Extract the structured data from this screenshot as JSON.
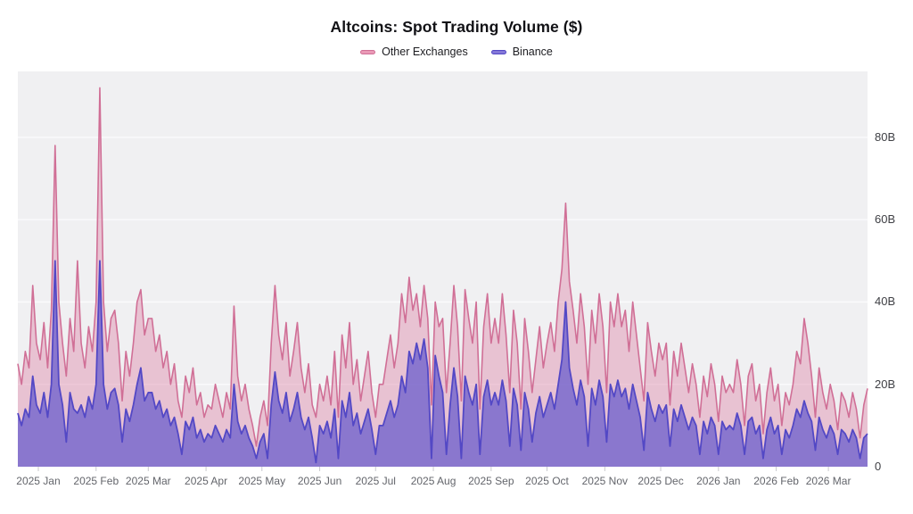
{
  "chart_data": {
    "type": "area",
    "mode": "overlay-binance-on-top",
    "title": "Altcoins: Spot Trading Volume ($)",
    "start_date": "2024-12-21",
    "interval_days": 2,
    "ylim": [
      0,
      96
    ],
    "grid": "horizontal-only",
    "legend_position": "top-center",
    "plot_background": "#f0f0f2",
    "gridline_color": "#fafafc",
    "tick_color": "#c9c9ce",
    "x_label_color": "#63656b",
    "y_label_color": "#3f4045",
    "y_ticks": [
      {
        "value": 0,
        "label": "0"
      },
      {
        "value": 20,
        "label": "20B"
      },
      {
        "value": 40,
        "label": "40B"
      },
      {
        "value": 60,
        "label": "60B"
      },
      {
        "value": 80,
        "label": "80B"
      }
    ],
    "x_ticks": [
      {
        "label": "2025 Jan",
        "day": 11
      },
      {
        "label": "2025 Feb",
        "day": 42
      },
      {
        "label": "2025 Mar",
        "day": 70
      },
      {
        "label": "2025 Apr",
        "day": 101
      },
      {
        "label": "2025 May",
        "day": 131
      },
      {
        "label": "2025 Jun",
        "day": 162
      },
      {
        "label": "2025 Jul",
        "day": 192
      },
      {
        "label": "2025 Aug",
        "day": 223
      },
      {
        "label": "2025 Sep",
        "day": 254
      },
      {
        "label": "2025 Oct",
        "day": 284
      },
      {
        "label": "2025 Nov",
        "day": 315
      },
      {
        "label": "2025 Dec",
        "day": 345
      },
      {
        "label": "2026 Jan",
        "day": 376
      },
      {
        "label": "2026 Feb",
        "day": 407
      },
      {
        "label": "2026 Mar",
        "day": 435
      }
    ],
    "series": [
      {
        "name": "Other Exchanges",
        "line_color": "#d06f96",
        "fill_color": "rgba(222,130,166,0.42)",
        "legend_swatch_color": "#ea9ab6",
        "line_width": 1.6,
        "values": [
          25,
          20,
          28,
          24,
          44,
          30,
          26,
          35,
          24,
          38,
          78,
          40,
          30,
          22,
          36,
          28,
          50,
          30,
          24,
          34,
          28,
          40,
          92,
          40,
          28,
          36,
          38,
          30,
          16,
          28,
          22,
          30,
          40,
          43,
          32,
          36,
          36,
          28,
          32,
          24,
          28,
          20,
          25,
          16,
          12,
          22,
          18,
          24,
          15,
          18,
          12,
          15,
          14,
          20,
          16,
          12,
          18,
          14,
          39,
          22,
          16,
          20,
          14,
          10,
          5,
          12,
          16,
          10,
          30,
          44,
          32,
          26,
          35,
          22,
          28,
          35,
          24,
          18,
          25,
          15,
          12,
          20,
          16,
          22,
          15,
          28,
          12,
          32,
          24,
          35,
          20,
          26,
          16,
          22,
          28,
          18,
          12,
          20,
          20,
          26,
          32,
          24,
          30,
          42,
          35,
          46,
          38,
          42,
          34,
          44,
          36,
          15,
          40,
          34,
          36,
          18,
          30,
          44,
          34,
          16,
          43,
          36,
          30,
          40,
          14,
          34,
          42,
          30,
          36,
          30,
          42,
          32,
          18,
          38,
          30,
          14,
          36,
          28,
          18,
          26,
          34,
          24,
          30,
          35,
          28,
          40,
          48,
          64,
          45,
          38,
          30,
          42,
          34,
          20,
          38,
          30,
          42,
          34,
          18,
          40,
          34,
          42,
          34,
          38,
          28,
          40,
          32,
          24,
          16,
          35,
          28,
          22,
          30,
          26,
          30,
          15,
          28,
          22,
          30,
          24,
          18,
          25,
          20,
          12,
          22,
          17,
          25,
          20,
          11,
          22,
          18,
          20,
          18,
          26,
          20,
          10,
          22,
          25,
          16,
          20,
          8,
          18,
          24,
          16,
          20,
          10,
          18,
          15,
          20,
          28,
          25,
          36,
          30,
          22,
          12,
          24,
          18,
          14,
          20,
          16,
          9,
          18,
          16,
          12,
          18,
          14,
          7,
          15,
          19
        ]
      },
      {
        "name": "Binance",
        "line_color": "#5348c5",
        "fill_color": "rgba(111,97,205,0.78)",
        "legend_swatch_color": "#8478d8",
        "line_width": 1.8,
        "values": [
          13,
          10,
          14,
          12,
          22,
          15,
          13,
          18,
          12,
          20,
          50,
          20,
          15,
          6,
          18,
          14,
          13,
          15,
          12,
          17,
          14,
          20,
          50,
          20,
          14,
          18,
          19,
          15,
          6,
          14,
          11,
          15,
          20,
          24,
          16,
          18,
          18,
          14,
          16,
          12,
          14,
          10,
          12,
          8,
          3,
          11,
          9,
          12,
          7,
          9,
          6,
          8,
          7,
          10,
          8,
          6,
          9,
          7,
          20,
          11,
          8,
          10,
          7,
          5,
          2,
          6,
          8,
          2,
          15,
          23,
          16,
          13,
          18,
          11,
          14,
          18,
          12,
          9,
          12,
          7,
          1,
          10,
          8,
          11,
          7,
          14,
          2,
          16,
          12,
          18,
          10,
          13,
          8,
          11,
          14,
          9,
          3,
          10,
          10,
          13,
          16,
          12,
          15,
          22,
          18,
          28,
          25,
          30,
          26,
          31,
          24,
          2,
          27,
          22,
          18,
          3,
          15,
          24,
          17,
          2,
          22,
          18,
          15,
          20,
          3,
          17,
          21,
          15,
          18,
          15,
          21,
          16,
          5,
          19,
          15,
          4,
          18,
          14,
          6,
          13,
          17,
          12,
          15,
          18,
          14,
          20,
          26,
          40,
          24,
          19,
          15,
          21,
          17,
          5,
          19,
          15,
          21,
          17,
          6,
          20,
          17,
          21,
          17,
          19,
          14,
          20,
          16,
          12,
          4,
          18,
          14,
          11,
          15,
          13,
          15,
          5,
          14,
          11,
          15,
          12,
          9,
          12,
          10,
          3,
          11,
          8,
          12,
          10,
          3,
          11,
          9,
          10,
          9,
          13,
          10,
          3,
          11,
          12,
          8,
          10,
          2,
          9,
          12,
          8,
          10,
          3,
          9,
          7,
          10,
          14,
          12,
          16,
          13,
          11,
          4,
          12,
          9,
          7,
          10,
          8,
          3,
          9,
          8,
          6,
          9,
          7,
          2,
          7,
          8
        ]
      }
    ]
  }
}
